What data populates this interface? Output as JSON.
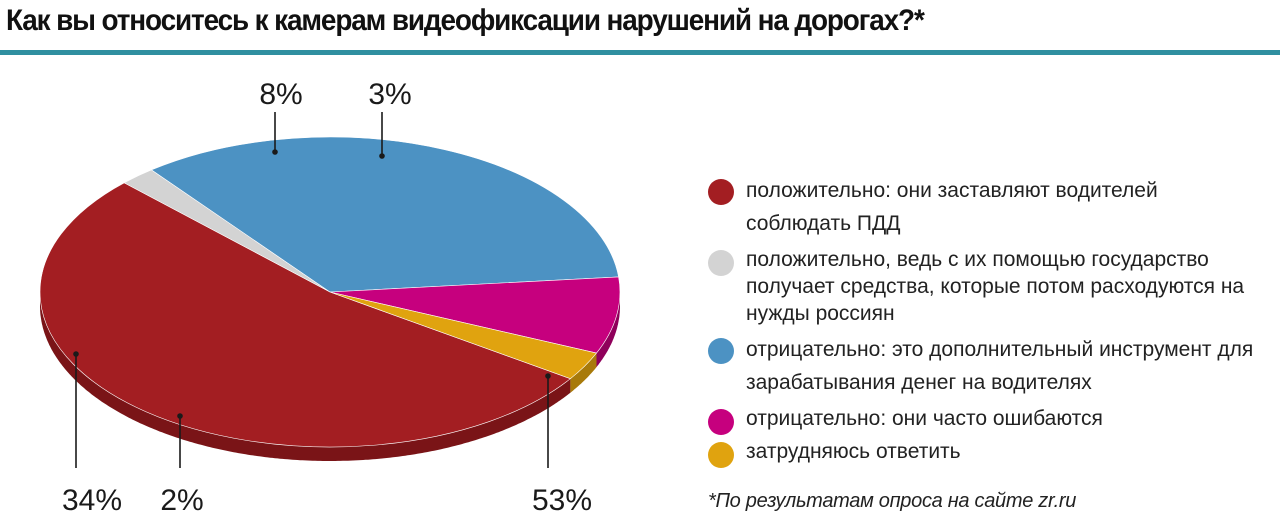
{
  "title": "Как вы относитесь к камерам видеофиксации нарушений на дорогах?*",
  "colors": {
    "rule": "#2f8fa0"
  },
  "chart_data": {
    "type": "pie",
    "title": "Как вы относитесь к камерам видеофиксации нарушений на дорогах?*",
    "legend_position": "right",
    "slices": [
      {
        "label": "положительно: они заставляют водителей соблюдать ПДД",
        "value": 53,
        "value_label": "53%",
        "color": "#a31e22",
        "side": "#7a1417"
      },
      {
        "label": "положительно, ведь с их помощью государство получает средства, которые потом расходуются на нужды россиян",
        "value": 2,
        "value_label": "2%",
        "color": "#d3d3d3",
        "side": "#a9a9a9"
      },
      {
        "label": "отрицательно: это дополнительный инструмент для зарабатывания денег на водителях",
        "value": 34,
        "value_label": "34%",
        "color": "#4c92c3",
        "side": "#336d97"
      },
      {
        "label": "отрицательно: они часто ошибаются",
        "value": 8,
        "value_label": "8%",
        "color": "#c6007e",
        "side": "#8f005b"
      },
      {
        "label": "затрудняюсь ответить",
        "value": 3,
        "value_label": "3%",
        "color": "#e0a30f",
        "side": "#a87a0a"
      }
    ]
  },
  "legend": {
    "items": [
      {
        "text": "положительно: они заставляют водителей соблюдать ПДД",
        "color": "#a31e22"
      },
      {
        "text": "положительно, ведь с их помощью государство получает средства, которые потом расходуются на нужды россиян",
        "color": "#d3d3d3"
      },
      {
        "text": "отрицательно: это дополнительный инструмент для зарабатывания денег на водителях",
        "color": "#4c92c3"
      },
      {
        "text": "отрицательно: они часто ошибаются",
        "color": "#c6007e"
      },
      {
        "text": "затрудняюсь ответить",
        "color": "#e0a30f"
      }
    ]
  },
  "footnote": "*По результатам   опроса на сайте zr.ru"
}
